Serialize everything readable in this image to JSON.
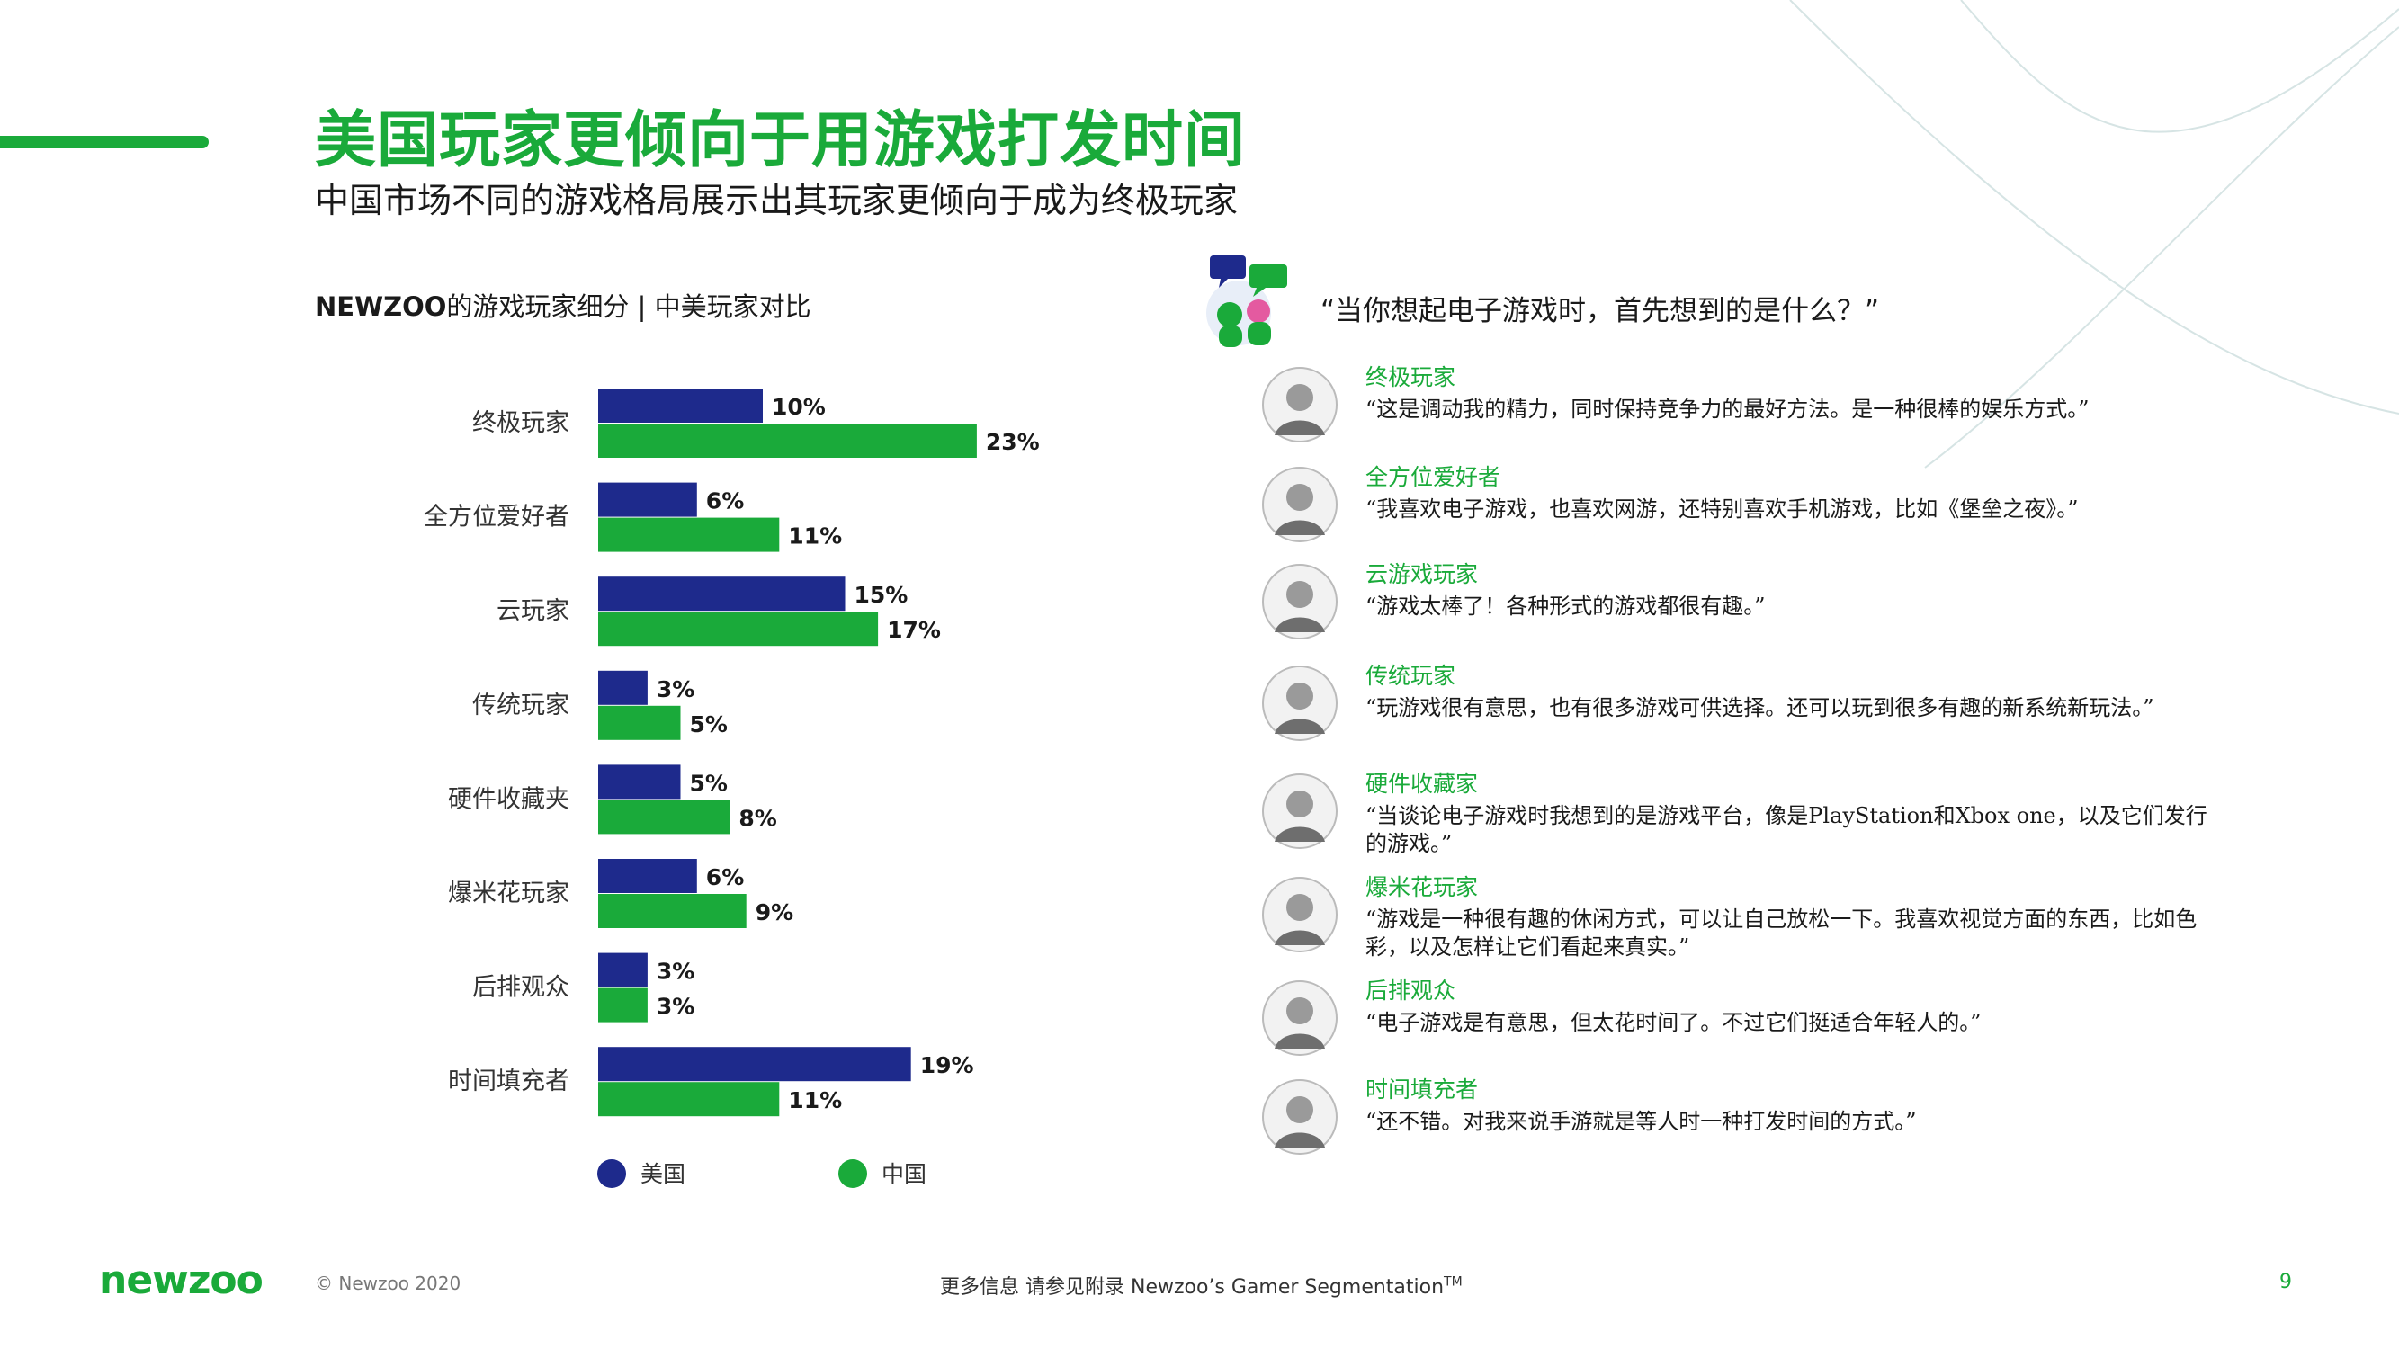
{
  "header": {
    "title": "美国玩家更倾向于用游戏打发时间",
    "subtitle": "中国市场不同的游戏格局展示出其玩家更倾向于成为终极玩家"
  },
  "chart_header": {
    "title_bold": "NEWZOO",
    "title_rest": "的游戏玩家细分 | 中美玩家对比"
  },
  "colors": {
    "us": "#1e2a8c",
    "china": "#1aaa3a",
    "accent": "#1aaa3a"
  },
  "chart_data": {
    "type": "bar",
    "orientation": "horizontal",
    "title": "NEWZOO的游戏玩家细分 | 中美玩家对比",
    "categories": [
      "终极玩家",
      "全方位爱好者",
      "云玩家",
      "传统玩家",
      "硬件收藏夹",
      "爆米花玩家",
      "后排观众",
      "时间填充者"
    ],
    "series": [
      {
        "name": "美国",
        "values": [
          10,
          6,
          15,
          3,
          5,
          6,
          3,
          19
        ]
      },
      {
        "name": "中国",
        "values": [
          23,
          11,
          17,
          5,
          8,
          9,
          3,
          11
        ]
      }
    ],
    "unit": "%",
    "legend_position": "bottom"
  },
  "quotes": {
    "question": "“当你想起电子游戏时，首先想到的是什么？”",
    "personas": [
      {
        "name": "终极玩家",
        "quote": "“这是调动我的精力，同时保持竞争力的最好方法。是一种很棒的娱乐方式。”"
      },
      {
        "name": "全方位爱好者",
        "quote": "“我喜欢电子游戏，也喜欢网游，还特别喜欢手机游戏，比如《堡垒之夜》。”"
      },
      {
        "name": "云游戏玩家",
        "quote": "“游戏太棒了！各种形式的游戏都很有趣。”"
      },
      {
        "name": "传统玩家",
        "quote": "“玩游戏很有意思，也有很多游戏可供选择。还可以玩到很多有趣的新系统新玩法。”"
      },
      {
        "name": "硬件收藏家",
        "quote": "“当谈论电子游戏时我想到的是游戏平台，像是PlayStation和Xbox one，以及它们发行的游戏。”"
      },
      {
        "name": "爆米花玩家",
        "quote": "“游戏是一种很有趣的休闲方式，可以让自己放松一下。我喜欢视觉方面的东西，比如色彩，以及怎样让它们看起来真实。”"
      },
      {
        "name": "后排观众",
        "quote": "“电子游戏是有意思，但太花时间了。不过它们挺适合年轻人的。”"
      },
      {
        "name": "时间填充者",
        "quote": "“还不错。对我来说手游就是等人时一种打发时间的方式。”"
      }
    ]
  },
  "footer": {
    "logo": "newzoo",
    "copyright": "© Newzoo 2020",
    "note": "更多信息 请参见附录 Newzoo’s Gamer Segmentation",
    "note_sup": "TM",
    "page": "9"
  }
}
